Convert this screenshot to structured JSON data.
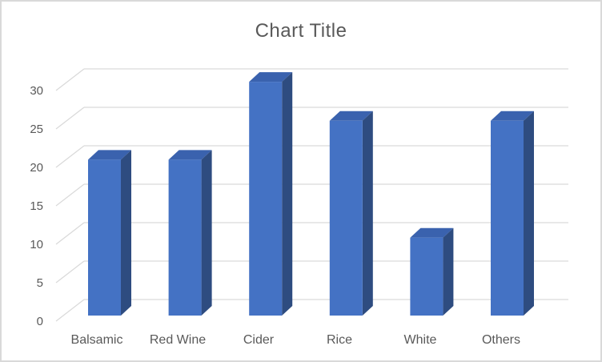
{
  "chart_data": {
    "type": "bar",
    "style": "3d-column",
    "title": "Chart Title",
    "categories": [
      "Balsamic",
      "Red Wine",
      "Cider",
      "Rice",
      "White",
      "Others"
    ],
    "values": [
      20,
      20,
      30,
      25,
      10,
      25
    ],
    "xlabel": "",
    "ylabel": "",
    "ylim": [
      0,
      30
    ],
    "yticks": [
      0,
      5,
      10,
      15,
      20,
      25,
      30
    ],
    "grid": true,
    "legend": false,
    "colors": {
      "bar_front": "#4472C4",
      "bar_top": "#3A62AE",
      "bar_side": "#2E4C80",
      "gridline": "#D9D9D9",
      "axis_text": "#595959",
      "title_text": "#595959",
      "frame_border": "#D9D9D9",
      "background": "#FFFFFF"
    }
  }
}
